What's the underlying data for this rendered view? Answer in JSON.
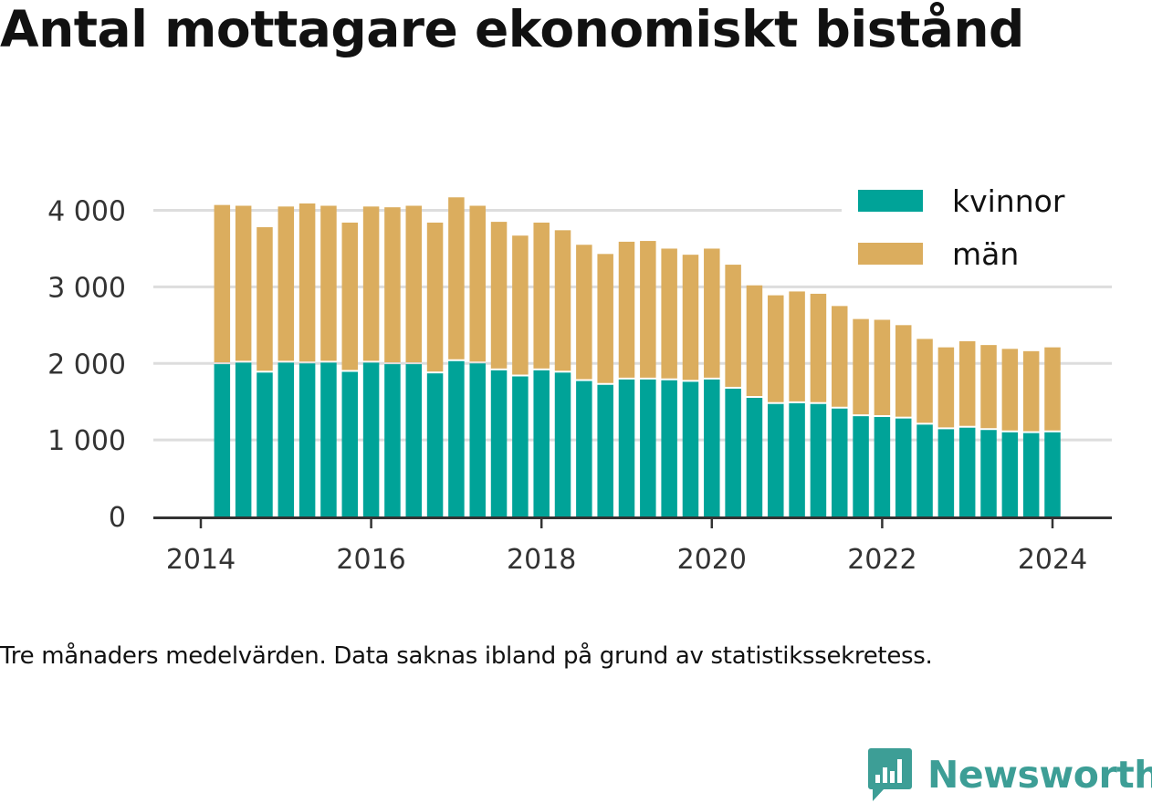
{
  "title": "Antal mottagare ekonomiskt bistånd",
  "caption": "Tre månaders medelvärden. Data saknas ibland på grund av statistikssekretess.",
  "brand": {
    "name": "Newsworthy",
    "logo_icon": "bar-chart-speech-bubble-icon",
    "color": "#3d9e96"
  },
  "chart_data": {
    "type": "bar",
    "stacked": true,
    "title": "Antal mottagare ekonomiskt bistånd",
    "xlabel": "",
    "ylabel": "",
    "ylim": [
      0,
      4200
    ],
    "yticks": [
      0,
      1000,
      2000,
      3000,
      4000
    ],
    "ytick_labels": [
      "0",
      "1 000",
      "2 000",
      "3 000",
      "4 000"
    ],
    "xticks": [
      2014,
      2016,
      2018,
      2020,
      2022,
      2024
    ],
    "xlim": [
      2013.5,
      2024.75
    ],
    "grid": true,
    "legend_position": "top-right",
    "x": [
      2014.25,
      2014.5,
      2014.75,
      2015.0,
      2015.25,
      2015.5,
      2015.75,
      2016.0,
      2016.25,
      2016.5,
      2016.75,
      2017.0,
      2017.25,
      2017.5,
      2017.75,
      2018.0,
      2018.25,
      2018.5,
      2018.75,
      2019.0,
      2019.25,
      2019.5,
      2019.75,
      2020.0,
      2020.25,
      2020.5,
      2020.75,
      2021.0,
      2021.25,
      2021.5,
      2021.75,
      2022.0,
      2022.25,
      2022.5,
      2022.75,
      2023.0,
      2023.25,
      2023.5,
      2023.75,
      2024.0
    ],
    "series": [
      {
        "name": "kvinnor",
        "color": "#00a398",
        "values": [
          1990,
          2010,
          1880,
          2010,
          2000,
          2010,
          1890,
          2010,
          1990,
          1990,
          1870,
          2030,
          2000,
          1910,
          1830,
          1910,
          1880,
          1770,
          1720,
          1790,
          1790,
          1780,
          1760,
          1790,
          1670,
          1550,
          1470,
          1480,
          1470,
          1410,
          1310,
          1300,
          1280,
          1200,
          1140,
          1160,
          1130,
          1100,
          1090,
          1100
        ]
      },
      {
        "name": "män",
        "color": "#dbad5e",
        "values": [
          2080,
          2050,
          1900,
          2040,
          2090,
          2050,
          1950,
          2040,
          2050,
          2070,
          1970,
          2140,
          2060,
          1940,
          1840,
          1930,
          1860,
          1780,
          1710,
          1800,
          1810,
          1720,
          1660,
          1710,
          1620,
          1470,
          1420,
          1460,
          1440,
          1340,
          1270,
          1270,
          1220,
          1120,
          1070,
          1130,
          1110,
          1090,
          1070,
          1110
        ]
      }
    ]
  }
}
